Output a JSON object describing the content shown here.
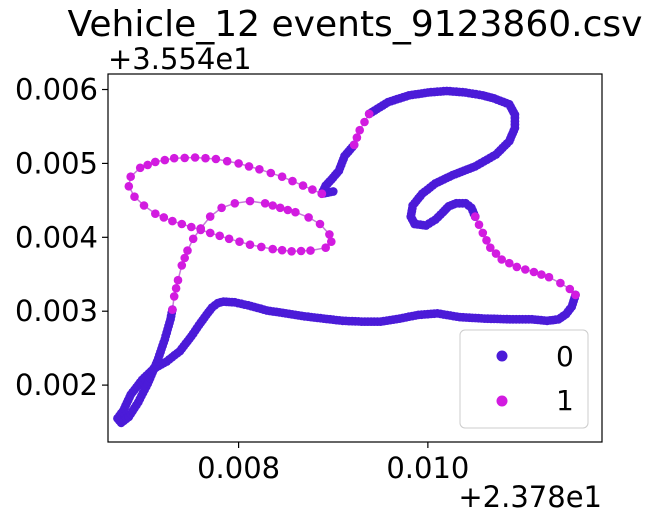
{
  "chart_data": {
    "type": "scatter",
    "title": "Vehicle_12 events_9123860.csv",
    "xlabel": "",
    "ylabel": "",
    "x_offset_label": "+2.378e1",
    "y_offset_label": "+3.554e1",
    "x_ticks": [
      {
        "value": 0.008,
        "label": "0.008"
      },
      {
        "value": 0.01,
        "label": "0.010"
      }
    ],
    "y_ticks": [
      {
        "value": 0.002,
        "label": "0.002"
      },
      {
        "value": 0.003,
        "label": "0.003"
      },
      {
        "value": 0.004,
        "label": "0.004"
      },
      {
        "value": 0.005,
        "label": "0.005"
      },
      {
        "value": 0.006,
        "label": "0.006"
      }
    ],
    "xlim": [
      0.00662,
      0.01184
    ],
    "ylim": [
      0.00123,
      0.00621
    ],
    "grid": false,
    "legend": {
      "position": "lower right",
      "entries": [
        {
          "label": "0",
          "color": "#4b1bd8"
        },
        {
          "label": "1",
          "color": "#d21be0"
        }
      ]
    },
    "series": [
      {
        "name": "0",
        "color": "#4b1bd8",
        "segments": [
          [
            [
              0.009,
              0.00462
            ],
            [
              0.00888,
              0.00459
            ],
            [
              0.00892,
              0.0047
            ],
            [
              0.00898,
              0.00478
            ],
            [
              0.00906,
              0.0049
            ],
            [
              0.00912,
              0.0051
            ],
            [
              0.00922,
              0.00525
            ]
          ],
          [
            [
              0.00938,
              0.00567
            ],
            [
              0.00958,
              0.00583
            ],
            [
              0.0098,
              0.00592
            ],
            [
              0.01,
              0.00596
            ],
            [
              0.0102,
              0.00598
            ],
            [
              0.0104,
              0.00596
            ],
            [
              0.01058,
              0.00592
            ],
            [
              0.0107,
              0.00588
            ],
            [
              0.01086,
              0.0058
            ],
            [
              0.01092,
              0.00566
            ],
            [
              0.01092,
              0.00548
            ],
            [
              0.01086,
              0.0053
            ],
            [
              0.01072,
              0.00512
            ],
            [
              0.0105,
              0.00496
            ],
            [
              0.01026,
              0.00484
            ],
            [
              0.01008,
              0.00473
            ],
            [
              0.00994,
              0.00459
            ],
            [
              0.00984,
              0.00443
            ],
            [
              0.00982,
              0.00428
            ],
            [
              0.00986,
              0.00418
            ],
            [
              0.00998,
              0.00416
            ],
            [
              0.01008,
              0.00424
            ],
            [
              0.01016,
              0.00434
            ],
            [
              0.01022,
              0.00442
            ],
            [
              0.0103,
              0.00446
            ],
            [
              0.0104,
              0.00446
            ],
            [
              0.01046,
              0.0044
            ],
            [
              0.0105,
              0.00428
            ]
          ],
          [
            [
              0.01156,
              0.00322
            ],
            [
              0.01152,
              0.00306
            ],
            [
              0.01146,
              0.00296
            ],
            [
              0.01138,
              0.00289
            ],
            [
              0.01126,
              0.00287
            ],
            [
              0.0111,
              0.00289
            ],
            [
              0.0109,
              0.00289
            ],
            [
              0.0106,
              0.0029
            ],
            [
              0.01034,
              0.00292
            ],
            [
              0.0101,
              0.00297
            ],
            [
              0.0099,
              0.00295
            ],
            [
              0.0097,
              0.0029
            ],
            [
              0.0095,
              0.00286
            ],
            [
              0.0093,
              0.00286
            ],
            [
              0.0091,
              0.00287
            ],
            [
              0.0089,
              0.0029
            ],
            [
              0.0087,
              0.00293
            ],
            [
              0.0085,
              0.00297
            ],
            [
              0.0083,
              0.00301
            ],
            [
              0.0081,
              0.00308
            ],
            [
              0.00796,
              0.00312
            ],
            [
              0.00784,
              0.00313
            ],
            [
              0.00778,
              0.00311
            ],
            [
              0.00772,
              0.00305
            ],
            [
              0.00766,
              0.00295
            ],
            [
              0.00758,
              0.00281
            ],
            [
              0.0075,
              0.00266
            ],
            [
              0.00738,
              0.00246
            ],
            [
              0.00724,
              0.00232
            ],
            [
              0.0071,
              0.00222
            ],
            [
              0.00698,
              0.00207
            ],
            [
              0.00686,
              0.00187
            ],
            [
              0.00678,
              0.00165
            ],
            [
              0.00672,
              0.00155
            ],
            [
              0.00676,
              0.00149
            ],
            [
              0.00684,
              0.00157
            ],
            [
              0.00694,
              0.00177
            ],
            [
              0.00704,
              0.00202
            ],
            [
              0.00714,
              0.00232
            ],
            [
              0.00722,
              0.00262
            ],
            [
              0.00728,
              0.00289
            ],
            [
              0.0073,
              0.00302
            ]
          ]
        ]
      },
      {
        "name": "1",
        "color": "#d21be0",
        "segments": [
          [
            [
              0.00922,
              0.00525
            ],
            [
              0.00928,
              0.00545
            ],
            [
              0.00938,
              0.00567
            ]
          ],
          [
            [
              0.0105,
              0.00428
            ],
            [
              0.01058,
              0.00406
            ],
            [
              0.01066,
              0.00386
            ],
            [
              0.01078,
              0.0037
            ],
            [
              0.01094,
              0.0036
            ],
            [
              0.01112,
              0.00353
            ],
            [
              0.01128,
              0.00346
            ],
            [
              0.0114,
              0.00338
            ],
            [
              0.0115,
              0.0033
            ],
            [
              0.01156,
              0.00322
            ]
          ],
          [
            [
              0.0073,
              0.00302
            ],
            [
              0.00732,
              0.0032
            ],
            [
              0.00736,
              0.00342
            ],
            [
              0.0074,
              0.00362
            ],
            [
              0.00746,
              0.00382
            ],
            [
              0.00752,
              0.00398
            ],
            [
              0.0076,
              0.00412
            ],
            [
              0.0077,
              0.00428
            ],
            [
              0.00782,
              0.0044
            ],
            [
              0.00796,
              0.00446
            ],
            [
              0.00812,
              0.00449
            ],
            [
              0.00828,
              0.00446
            ],
            [
              0.00844,
              0.0044
            ],
            [
              0.0086,
              0.00434
            ],
            [
              0.00874,
              0.00427
            ],
            [
              0.00886,
              0.00418
            ],
            [
              0.00896,
              0.00404
            ],
            [
              0.00898,
              0.00394
            ],
            [
              0.00892,
              0.00386
            ],
            [
              0.00876,
              0.00382
            ],
            [
              0.00856,
              0.00381
            ],
            [
              0.00836,
              0.00384
            ],
            [
              0.00812,
              0.0039
            ],
            [
              0.0079,
              0.00398
            ],
            [
              0.0077,
              0.00406
            ],
            [
              0.0075,
              0.00414
            ],
            [
              0.0073,
              0.00422
            ],
            [
              0.00712,
              0.00432
            ],
            [
              0.007,
              0.00443
            ],
            [
              0.0069,
              0.00455
            ],
            [
              0.00684,
              0.00469
            ],
            [
              0.00686,
              0.00482
            ],
            [
              0.00696,
              0.00494
            ],
            [
              0.00712,
              0.00502
            ],
            [
              0.00732,
              0.00507
            ],
            [
              0.00754,
              0.00508
            ],
            [
              0.00776,
              0.00506
            ],
            [
              0.008,
              0.005
            ],
            [
              0.00822,
              0.00492
            ],
            [
              0.00846,
              0.00482
            ],
            [
              0.00868,
              0.0047
            ],
            [
              0.00888,
              0.00459
            ]
          ]
        ]
      }
    ]
  }
}
